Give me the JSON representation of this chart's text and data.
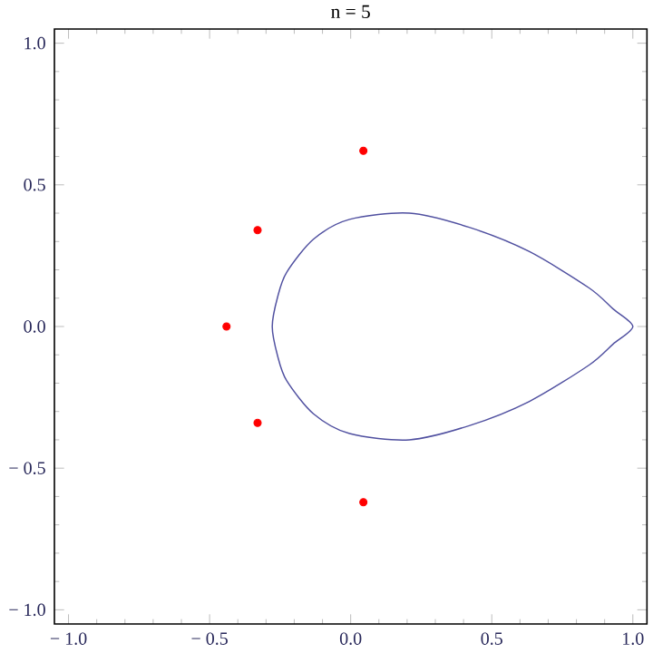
{
  "chart_data": {
    "type": "scatter",
    "title": "n = 5",
    "series": [
      {
        "color": "#ff0000",
        "x": [
          0.045,
          -0.33,
          -0.44,
          -0.33,
          0.045
        ],
        "values": [
          0.62,
          0.34,
          0.0,
          -0.34,
          -0.62
        ]
      }
    ],
    "xlim": [
      -1.05,
      1.05
    ],
    "ylim": [
      -1.05,
      1.05
    ],
    "xticks": [
      {
        "value": -1.0,
        "label": "− 1.0"
      },
      {
        "value": -0.5,
        "label": "− 0.5"
      },
      {
        "value": 0.0,
        "label": "0.0"
      },
      {
        "value": 0.5,
        "label": "0.5"
      },
      {
        "value": 1.0,
        "label": "1.0"
      }
    ],
    "yticks": [
      {
        "value": -1.0,
        "label": "− 1.0"
      },
      {
        "value": -0.5,
        "label": "− 0.5"
      },
      {
        "value": 0.0,
        "label": "0.0"
      },
      {
        "value": 0.5,
        "label": "0.5"
      },
      {
        "value": 1.0,
        "label": "1.0"
      }
    ],
    "grid": false
  }
}
